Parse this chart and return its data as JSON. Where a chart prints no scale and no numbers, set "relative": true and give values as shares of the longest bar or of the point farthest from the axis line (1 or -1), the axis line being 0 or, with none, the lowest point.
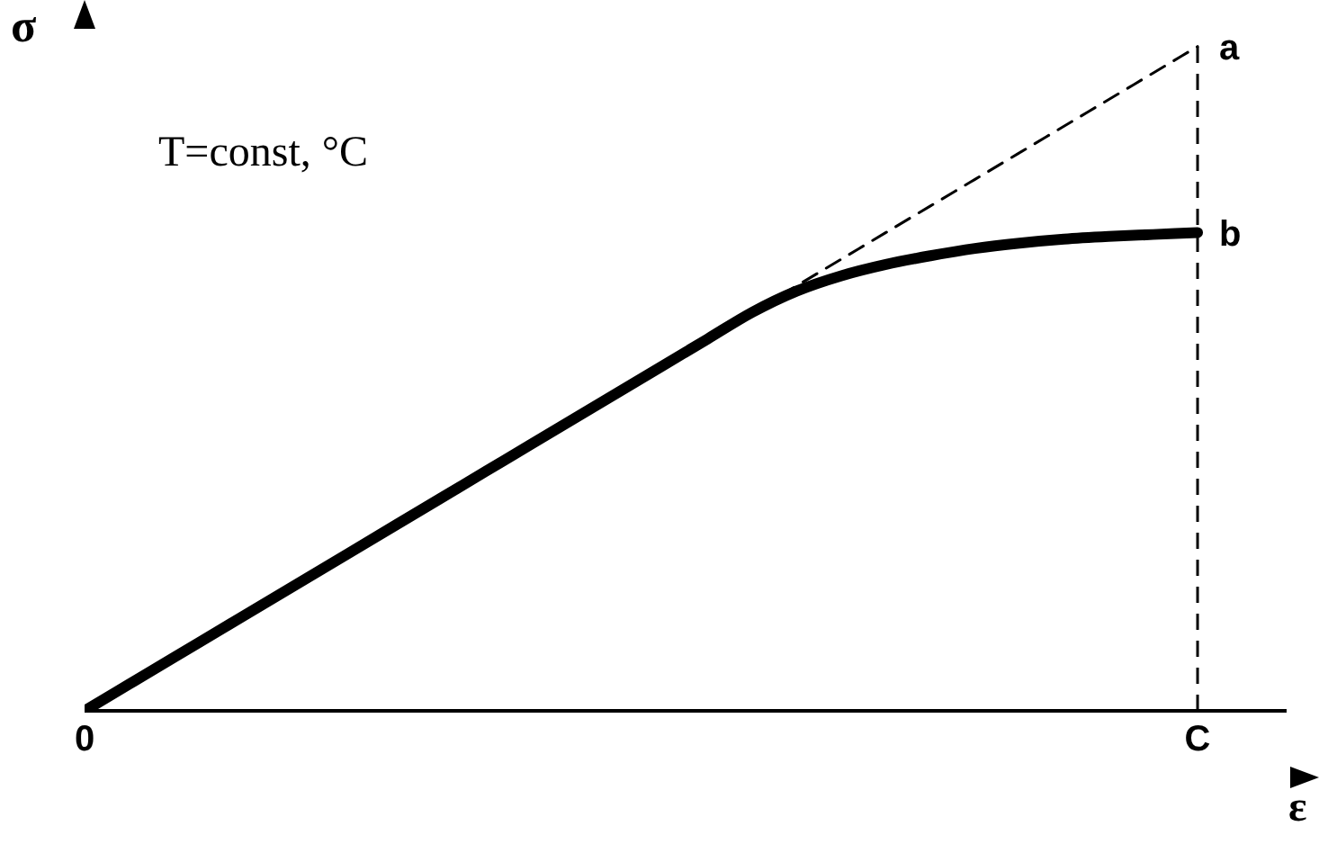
{
  "chart_data": {
    "type": "line",
    "relative": true,
    "xlabel": "ε",
    "ylabel": "σ",
    "marker": "none",
    "categories": [
      "0",
      null,
      null,
      null,
      null,
      null,
      null,
      null,
      null,
      null,
      null,
      null,
      null,
      null,
      null,
      null,
      null,
      null,
      null,
      null,
      null,
      null,
      null,
      null,
      null,
      "C",
      null,
      null
    ],
    "annotations": [
      "T=const, °C",
      {
        "text": "a",
        "x": "C",
        "y": 1
      },
      {
        "text": "b",
        "x": "C",
        "y": 0.72
      }
    ],
    "ref_lines": [
      {
        "axis": "x",
        "value": "C",
        "color": "#000000",
        "line_style": "dashed"
      }
    ],
    "series": [
      {
        "color": "#000000",
        "line_style": "dashed",
        "values": [
          0,
          0.04,
          0.08,
          0.12,
          0.16,
          0.2,
          0.24,
          0.28,
          0.32,
          0.36,
          0.4,
          0.44,
          0.48,
          0.52,
          0.56,
          0.6,
          0.64,
          0.68,
          0.72,
          0.76,
          0.8,
          0.84,
          0.88,
          0.92,
          0.96,
          1,
          null,
          null
        ]
      },
      {
        "color": "#000000",
        "line_style": "solid",
        "values": [
          0,
          0.04,
          0.08,
          0.12,
          0.16,
          0.2,
          0.24,
          0.28,
          0.32,
          0.36,
          0.4,
          0.44,
          0.48,
          0.52,
          0.56,
          0.6,
          0.632,
          0.655,
          0.672,
          0.685,
          0.696,
          0.704,
          0.71,
          0.714,
          0.717,
          0.72,
          null,
          null
        ]
      }
    ]
  }
}
